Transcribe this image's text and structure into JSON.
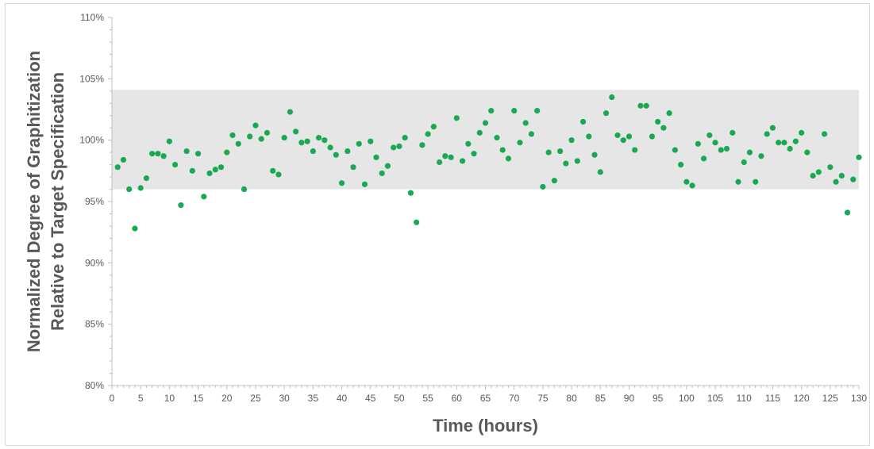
{
  "chart_data": {
    "type": "scatter",
    "xlabel": "Time (hours)",
    "ylabel_lines": [
      "Normalized Degree of Graphitization",
      "Relative to Target Specification"
    ],
    "xlim": [
      0,
      130
    ],
    "ylim": [
      80,
      110
    ],
    "x_ticks": [
      0,
      5,
      10,
      15,
      20,
      25,
      30,
      35,
      40,
      45,
      50,
      55,
      60,
      65,
      70,
      75,
      80,
      85,
      90,
      95,
      100,
      105,
      110,
      115,
      120,
      125,
      130
    ],
    "y_ticks": [
      80,
      85,
      90,
      95,
      100,
      105,
      110
    ],
    "y_tick_labels": [
      "80%",
      "85%",
      "90%",
      "95%",
      "100%",
      "105%",
      "110%"
    ],
    "spec_band": [
      96,
      104.1
    ],
    "grid": false,
    "legend": "none",
    "colors": {
      "points": "#1aa850",
      "band": "#e6e6e6",
      "axis": "#bfbfbf",
      "text": "#595959"
    },
    "x": [
      1,
      2,
      3,
      4,
      5,
      6,
      7,
      8,
      9,
      10,
      11,
      12,
      13,
      14,
      15,
      16,
      17,
      18,
      19,
      20,
      21,
      22,
      23,
      24,
      25,
      26,
      27,
      28,
      29,
      30,
      31,
      32,
      33,
      34,
      35,
      36,
      37,
      38,
      39,
      40,
      41,
      42,
      43,
      44,
      45,
      46,
      47,
      48,
      49,
      50,
      51,
      52,
      53,
      54,
      55,
      56,
      57,
      58,
      59,
      60,
      61,
      62,
      63,
      64,
      65,
      66,
      67,
      68,
      69,
      70,
      71,
      72,
      73,
      74,
      75,
      76,
      77,
      78,
      79,
      80,
      81,
      82,
      83,
      84,
      85,
      86,
      87,
      88,
      89,
      90,
      91,
      92,
      93,
      94,
      95,
      96,
      97,
      98,
      99,
      100,
      101,
      102,
      103,
      104,
      105,
      106,
      107,
      108,
      109,
      110,
      111,
      112,
      113,
      114,
      115,
      116,
      117,
      118,
      119,
      120,
      121,
      122,
      123,
      124,
      125,
      126,
      127,
      128,
      129,
      130
    ],
    "y": [
      97.8,
      98.4,
      96.0,
      92.8,
      96.1,
      96.9,
      98.9,
      98.9,
      98.7,
      99.9,
      98.0,
      94.7,
      99.1,
      97.5,
      98.9,
      95.4,
      97.3,
      97.6,
      97.8,
      99.0,
      100.4,
      99.7,
      96.0,
      100.3,
      101.2,
      100.1,
      100.6,
      97.5,
      97.2,
      100.2,
      102.3,
      100.7,
      99.8,
      99.9,
      99.1,
      100.2,
      100.0,
      99.4,
      98.8,
      96.5,
      99.1,
      97.8,
      99.7,
      96.4,
      99.9,
      98.6,
      97.3,
      97.9,
      99.4,
      99.5,
      100.2,
      95.7,
      93.3,
      99.6,
      100.5,
      101.1,
      98.2,
      98.7,
      98.6,
      101.8,
      98.3,
      99.7,
      98.9,
      100.6,
      101.4,
      102.4,
      100.2,
      99.2,
      98.5,
      102.4,
      99.8,
      101.4,
      100.5,
      102.4,
      96.2,
      99.0,
      96.7,
      99.1,
      98.1,
      100.0,
      98.3,
      101.5,
      100.3,
      98.8,
      97.4,
      102.2,
      103.5,
      100.4,
      100.0,
      100.3,
      99.2,
      102.8,
      102.8,
      100.3,
      101.5,
      101.0,
      102.2,
      99.2,
      98.0,
      96.6,
      96.3,
      99.7,
      98.5,
      100.4,
      99.8,
      99.2,
      99.3,
      100.6,
      96.6,
      98.2,
      99.0,
      96.6,
      98.7,
      100.5,
      101.0,
      99.8,
      99.8,
      99.3,
      99.9,
      100.6,
      99.0,
      97.1,
      97.4,
      100.5,
      97.8,
      96.6,
      97.1,
      94.1,
      96.8,
      98.6
    ]
  }
}
